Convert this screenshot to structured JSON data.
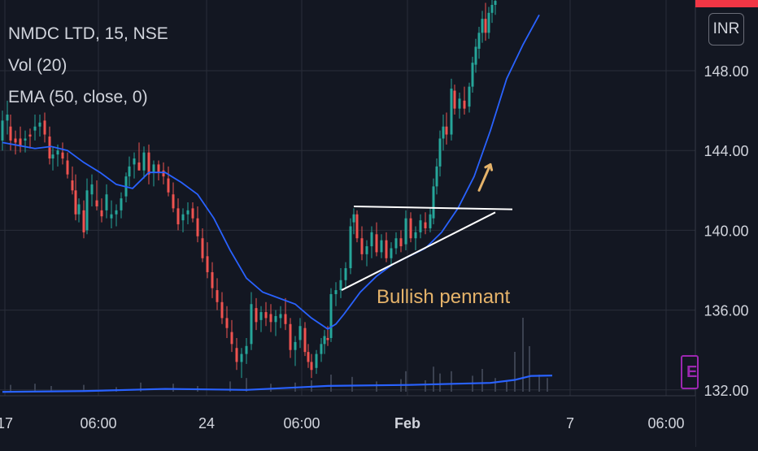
{
  "symbol": {
    "name": "NMDC LTD",
    "interval": "15",
    "exchange": "NSE",
    "title": "NMDC LTD, 15, NSE"
  },
  "indicators": {
    "volume": "Vol (20)",
    "ema": "EMA (50, close, 0)"
  },
  "currency": "INR",
  "event_badge": "E",
  "annotation": {
    "label": "Bullish pennant",
    "arrow_color": "#e5b36a"
  },
  "colors": {
    "background": "#131722",
    "up": "#26a69a",
    "down": "#ef5350",
    "ema": "#2962ff",
    "volume_ma": "#2962ff",
    "pattern_lines": "#ffffff",
    "annotation": "#e5b36a"
  },
  "chart_data": {
    "type": "candlestick",
    "title": "NMDC LTD, 15, NSE",
    "y_axis": {
      "ticks": [
        "148.00",
        "144.00",
        "140.00",
        "136.00",
        "132.00"
      ],
      "range": [
        131.95,
        150.0
      ]
    },
    "x_axis": {
      "ticks": [
        "17",
        "06:00",
        "24",
        "06:00",
        "Feb",
        "7",
        "06:00"
      ]
    },
    "series": [
      {
        "name": "EMA (50, close, 0)",
        "kind": "line",
        "points": [
          [
            0,
            144.4
          ],
          [
            20,
            144.25
          ],
          [
            40,
            144.1
          ],
          [
            60,
            144.2
          ],
          [
            80,
            144.0
          ],
          [
            100,
            143.4
          ],
          [
            120,
            142.9
          ],
          [
            140,
            142.3
          ],
          [
            160,
            142.1
          ],
          [
            180,
            142.9
          ],
          [
            200,
            142.9
          ],
          [
            220,
            142.4
          ],
          [
            240,
            141.8
          ],
          [
            260,
            140.6
          ],
          [
            280,
            139.0
          ],
          [
            300,
            137.6
          ],
          [
            320,
            136.9
          ],
          [
            340,
            136.6
          ],
          [
            360,
            136.3
          ],
          [
            380,
            135.6
          ],
          [
            400,
            135.05
          ],
          [
            410,
            135.3
          ],
          [
            420,
            135.8
          ],
          [
            440,
            136.9
          ],
          [
            460,
            137.7
          ],
          [
            480,
            138.3
          ],
          [
            500,
            138.7
          ],
          [
            520,
            139.1
          ],
          [
            540,
            139.9
          ],
          [
            560,
            141.1
          ],
          [
            580,
            142.7
          ],
          [
            600,
            145.0
          ],
          [
            620,
            147.6
          ],
          [
            640,
            149.3
          ],
          [
            660,
            150.8
          ]
        ]
      },
      {
        "name": "Vol (20)",
        "kind": "volume_ma",
        "points": [
          [
            0,
            131.9
          ],
          [
            100,
            131.94
          ],
          [
            200,
            132.05
          ],
          [
            300,
            132.0
          ],
          [
            400,
            132.2
          ],
          [
            500,
            132.25
          ],
          [
            600,
            132.35
          ],
          [
            630,
            132.5
          ],
          [
            650,
            132.7
          ],
          [
            676,
            132.72
          ]
        ]
      }
    ],
    "candles": [
      [
        0,
        144.5,
        146.0,
        144.0,
        145.5
      ],
      [
        6,
        145.5,
        146.5,
        144.8,
        145.8
      ],
      [
        10,
        145.2,
        145.8,
        144.0,
        144.5
      ],
      [
        16,
        144.6,
        145.0,
        143.8,
        144.4
      ],
      [
        22,
        144.6,
        145.2,
        143.9,
        144.2
      ],
      [
        28,
        144.5,
        145.0,
        143.9,
        144.6
      ],
      [
        34,
        144.8,
        145.1,
        144.1,
        144.7
      ],
      [
        40,
        145.0,
        145.8,
        144.5,
        145.2
      ],
      [
        46,
        145.2,
        145.8,
        144.7,
        145.4
      ],
      [
        52,
        145.5,
        145.9,
        144.4,
        144.8
      ],
      [
        58,
        144.7,
        145.2,
        143.3,
        143.6
      ],
      [
        62,
        143.6,
        144.2,
        143.0,
        143.8
      ],
      [
        68,
        143.8,
        144.3,
        143.2,
        144.0
      ],
      [
        74,
        143.9,
        144.4,
        143.3,
        143.6
      ],
      [
        80,
        143.5,
        143.9,
        142.6,
        142.8
      ],
      [
        86,
        142.5,
        143.2,
        141.8,
        142.0
      ],
      [
        90,
        142.0,
        142.8,
        140.5,
        140.8
      ],
      [
        94,
        140.8,
        141.6,
        140.4,
        141.3
      ],
      [
        100,
        141.0,
        141.5,
        139.6,
        139.9
      ],
      [
        104,
        140.0,
        142.6,
        139.8,
        142.0
      ],
      [
        110,
        141.8,
        142.8,
        141.2,
        142.3
      ],
      [
        116,
        141.5,
        142.5,
        141.0,
        141.2
      ],
      [
        122,
        141.0,
        141.6,
        140.4,
        140.7
      ],
      [
        128,
        141.0,
        142.3,
        140.6,
        141.8
      ],
      [
        134,
        140.6,
        141.5,
        140.1,
        140.8
      ],
      [
        140,
        140.8,
        141.3,
        140.2,
        141.0
      ],
      [
        146,
        141.0,
        141.9,
        140.6,
        141.6
      ],
      [
        152,
        141.7,
        142.9,
        141.4,
        142.7
      ],
      [
        156,
        142.7,
        143.7,
        142.2,
        143.2
      ],
      [
        162,
        143.3,
        143.9,
        142.6,
        143.6
      ],
      [
        168,
        143.4,
        144.4,
        143.0,
        143.0
      ],
      [
        174,
        143.0,
        144.2,
        142.6,
        143.9
      ],
      [
        180,
        143.9,
        144.3,
        142.3,
        142.8
      ],
      [
        186,
        142.9,
        143.5,
        142.2,
        143.3
      ],
      [
        192,
        143.3,
        143.5,
        142.5,
        142.9
      ],
      [
        198,
        143.0,
        143.4,
        142.3,
        142.7
      ],
      [
        204,
        142.6,
        143.2,
        141.7,
        141.9
      ],
      [
        210,
        141.8,
        142.4,
        140.9,
        141.1
      ],
      [
        216,
        141.1,
        141.6,
        140.0,
        140.3
      ],
      [
        222,
        140.5,
        141.1,
        139.9,
        140.8
      ],
      [
        228,
        140.8,
        141.4,
        140.3,
        141.0
      ],
      [
        234,
        141.1,
        141.4,
        140.4,
        140.6
      ],
      [
        240,
        140.6,
        141.2,
        139.4,
        139.7
      ],
      [
        246,
        139.6,
        140.1,
        138.4,
        138.6
      ],
      [
        252,
        138.7,
        139.4,
        137.6,
        137.9
      ],
      [
        258,
        137.9,
        138.4,
        136.6,
        137.1
      ],
      [
        264,
        137.0,
        137.6,
        136.0,
        136.4
      ],
      [
        270,
        136.4,
        136.9,
        135.3,
        135.6
      ],
      [
        276,
        135.6,
        136.2,
        134.6,
        135.1
      ],
      [
        282,
        134.9,
        135.5,
        133.9,
        134.3
      ],
      [
        288,
        134.1,
        134.6,
        133.0,
        133.4
      ],
      [
        294,
        133.4,
        134.1,
        132.6,
        133.8
      ],
      [
        300,
        133.8,
        134.6,
        133.3,
        134.2
      ],
      [
        306,
        134.3,
        136.9,
        134.0,
        136.3
      ],
      [
        312,
        136.1,
        136.6,
        135.0,
        135.4
      ],
      [
        318,
        135.5,
        136.2,
        134.9,
        135.9
      ],
      [
        324,
        135.9,
        136.4,
        135.2,
        135.6
      ],
      [
        330,
        135.8,
        136.3,
        134.9,
        135.4
      ],
      [
        336,
        135.4,
        136.0,
        134.7,
        135.7
      ],
      [
        342,
        135.6,
        136.2,
        135.1,
        135.8
      ],
      [
        348,
        135.8,
        136.6,
        135.0,
        135.3
      ],
      [
        354,
        135.3,
        135.6,
        133.6,
        134.0
      ],
      [
        360,
        134.0,
        134.7,
        133.2,
        134.4
      ],
      [
        366,
        134.5,
        135.6,
        134.1,
        135.2
      ],
      [
        372,
        135.1,
        135.4,
        133.7,
        133.9
      ],
      [
        376,
        133.9,
        134.3,
        133.1,
        133.4
      ],
      [
        380,
        133.4,
        133.8,
        132.6,
        133.0
      ],
      [
        386,
        133.1,
        134.0,
        132.8,
        133.8
      ],
      [
        392,
        133.8,
        134.6,
        133.4,
        134.3
      ],
      [
        396,
        134.3,
        135.0,
        133.8,
        134.7
      ],
      [
        400,
        134.6,
        135.2,
        134.2,
        134.5
      ],
      [
        404,
        134.6,
        137.1,
        134.4,
        136.8
      ],
      [
        410,
        136.8,
        137.4,
        136.2,
        137.0
      ],
      [
        416,
        137.0,
        138.1,
        136.6,
        137.5
      ],
      [
        422,
        137.5,
        138.4,
        137.1,
        138.1
      ],
      [
        428,
        138.1,
        140.6,
        137.8,
        140.2
      ],
      [
        432,
        140.4,
        141.1,
        139.8,
        140.8
      ],
      [
        436,
        140.8,
        141.0,
        139.4,
        139.6
      ],
      [
        442,
        139.6,
        140.2,
        138.5,
        138.8
      ],
      [
        448,
        138.8,
        139.5,
        138.2,
        139.2
      ],
      [
        454,
        139.2,
        140.2,
        138.6,
        139.9
      ],
      [
        460,
        139.8,
        140.4,
        138.7,
        138.9
      ],
      [
        466,
        138.9,
        139.8,
        138.6,
        139.5
      ],
      [
        472,
        139.5,
        139.9,
        138.4,
        138.6
      ],
      [
        478,
        138.6,
        139.4,
        138.2,
        139.1
      ],
      [
        484,
        139.1,
        139.9,
        138.8,
        139.6
      ],
      [
        490,
        139.6,
        140.0,
        138.9,
        139.2
      ],
      [
        496,
        139.3,
        141.0,
        139.0,
        140.6
      ],
      [
        502,
        140.6,
        140.9,
        139.4,
        139.6
      ],
      [
        508,
        139.6,
        140.2,
        139.0,
        139.9
      ],
      [
        514,
        139.9,
        140.8,
        139.6,
        140.5
      ],
      [
        520,
        140.4,
        140.9,
        139.8,
        140.1
      ],
      [
        526,
        140.1,
        141.1,
        139.9,
        140.8
      ],
      [
        530,
        140.6,
        142.6,
        140.3,
        142.2
      ],
      [
        534,
        142.2,
        143.6,
        141.8,
        143.2
      ],
      [
        538,
        143.2,
        145.0,
        142.7,
        144.6
      ],
      [
        542,
        144.6,
        145.8,
        144.0,
        145.2
      ],
      [
        546,
        145.2,
        145.9,
        144.3,
        144.8
      ],
      [
        552,
        144.8,
        147.6,
        144.5,
        147.1
      ],
      [
        556,
        147.0,
        147.3,
        145.8,
        146.1
      ],
      [
        562,
        146.1,
        146.9,
        145.6,
        146.6
      ],
      [
        568,
        146.5,
        147.2,
        145.8,
        146.1
      ],
      [
        574,
        146.2,
        147.4,
        145.9,
        147.2
      ],
      [
        578,
        147.2,
        148.7,
        146.9,
        148.4
      ],
      [
        582,
        148.3,
        149.6,
        147.9,
        149.2
      ],
      [
        586,
        149.1,
        150.2,
        148.6,
        149.9
      ],
      [
        590,
        149.9,
        151.0,
        149.4,
        150.6
      ],
      [
        594,
        150.6,
        151.4,
        149.5,
        149.9
      ],
      [
        598,
        149.9,
        151.2,
        149.6,
        150.9
      ],
      [
        602,
        150.9,
        151.6,
        150.4,
        151.3
      ],
      [
        606,
        151.3,
        151.9,
        150.8,
        151.5
      ]
    ],
    "volume_bars": [
      [
        10,
        0.6
      ],
      [
        40,
        0.7
      ],
      [
        60,
        0.5
      ],
      [
        100,
        0.6
      ],
      [
        140,
        0.4
      ],
      [
        170,
        0.8
      ],
      [
        210,
        0.7
      ],
      [
        240,
        0.5
      ],
      [
        280,
        0.9
      ],
      [
        300,
        1.2
      ],
      [
        330,
        0.7
      ],
      [
        360,
        0.8
      ],
      [
        380,
        1.0
      ],
      [
        404,
        1.5
      ],
      [
        430,
        1.3
      ],
      [
        460,
        0.9
      ],
      [
        490,
        1.1
      ],
      [
        496,
        1.8
      ],
      [
        520,
        1.0
      ],
      [
        530,
        2.2
      ],
      [
        538,
        1.6
      ],
      [
        552,
        1.8
      ],
      [
        578,
        1.4
      ],
      [
        590,
        2.0
      ],
      [
        606,
        1.2
      ],
      [
        620,
        1.0
      ],
      [
        630,
        3.5
      ],
      [
        640,
        6.5
      ],
      [
        648,
        4.0
      ],
      [
        660,
        1.5
      ],
      [
        670,
        1.2
      ]
    ],
    "drawings": [
      {
        "kind": "line",
        "from": [
          432,
          141.2
        ],
        "to": [
          627,
          141.05
        ],
        "color": "#ffffff"
      },
      {
        "kind": "line",
        "from": [
          417,
          137.0
        ],
        "to": [
          606,
          140.9
        ],
        "color": "#ffffff"
      },
      {
        "kind": "arrow",
        "from": [
          586,
          142.0
        ],
        "to": [
          600,
          143.3
        ],
        "color": "#e5b36a"
      }
    ],
    "annotations": [
      {
        "text": "Bullish pennant",
        "at": [
          462,
          136.2
        ]
      }
    ]
  }
}
